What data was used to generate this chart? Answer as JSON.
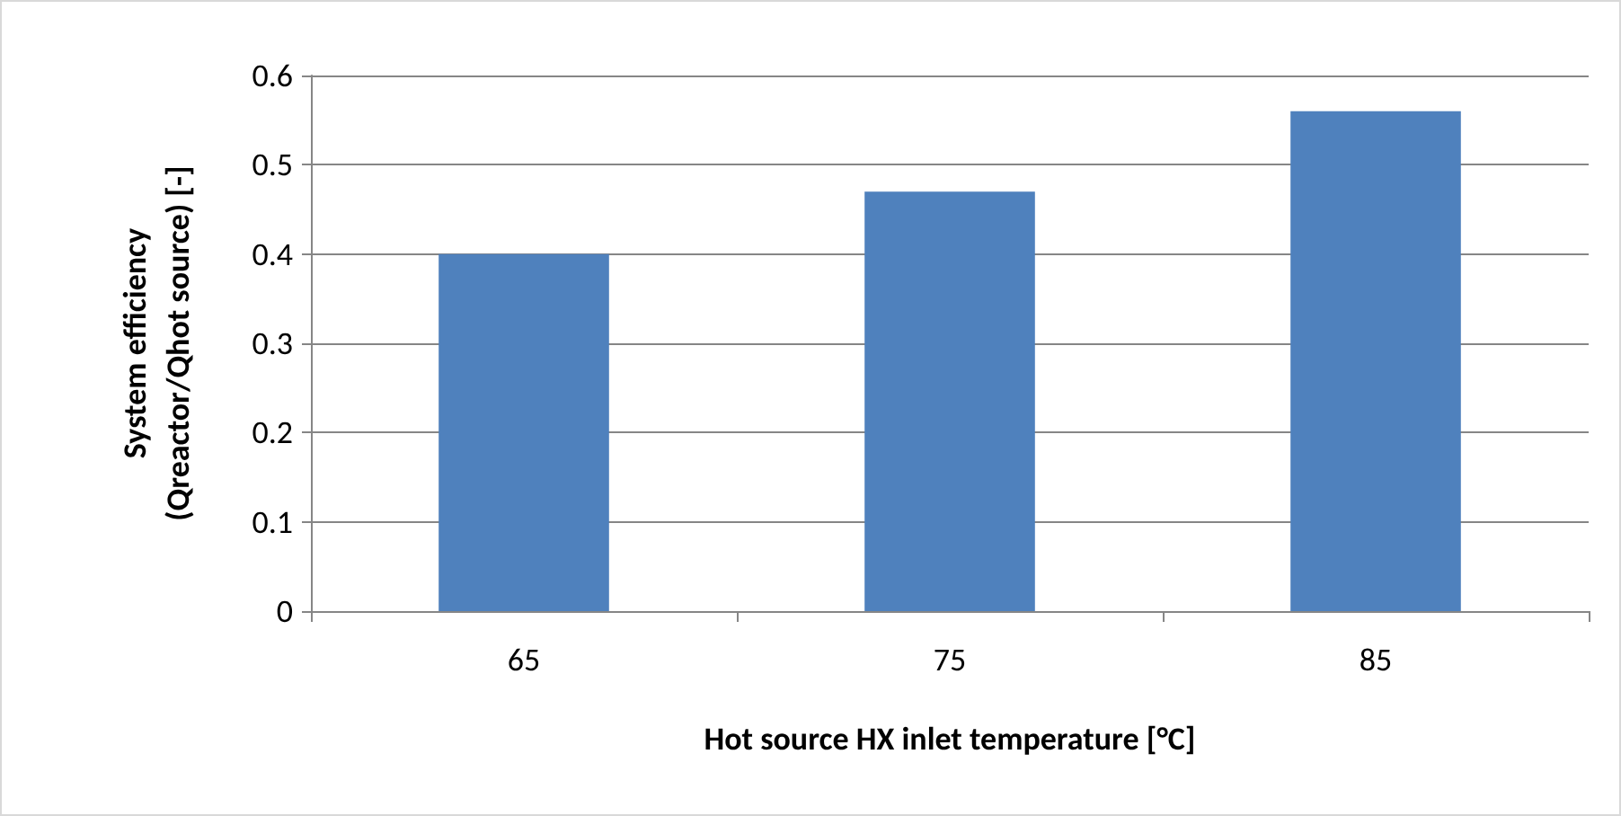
{
  "chart_data": {
    "type": "bar",
    "xlabel": "Hot source HX inlet temperature [°C]",
    "ylabel": "System efficiency\n(Qreactor/Qhot source) [-]",
    "categories": [
      "65",
      "75",
      "85"
    ],
    "values": [
      0.4,
      0.47,
      0.56
    ],
    "color": "#4f81bd",
    "ylim": [
      0,
      0.6
    ],
    "yticks": [
      0,
      0.1,
      0.2,
      0.3,
      0.4,
      0.5,
      0.6
    ],
    "grid": "y"
  }
}
